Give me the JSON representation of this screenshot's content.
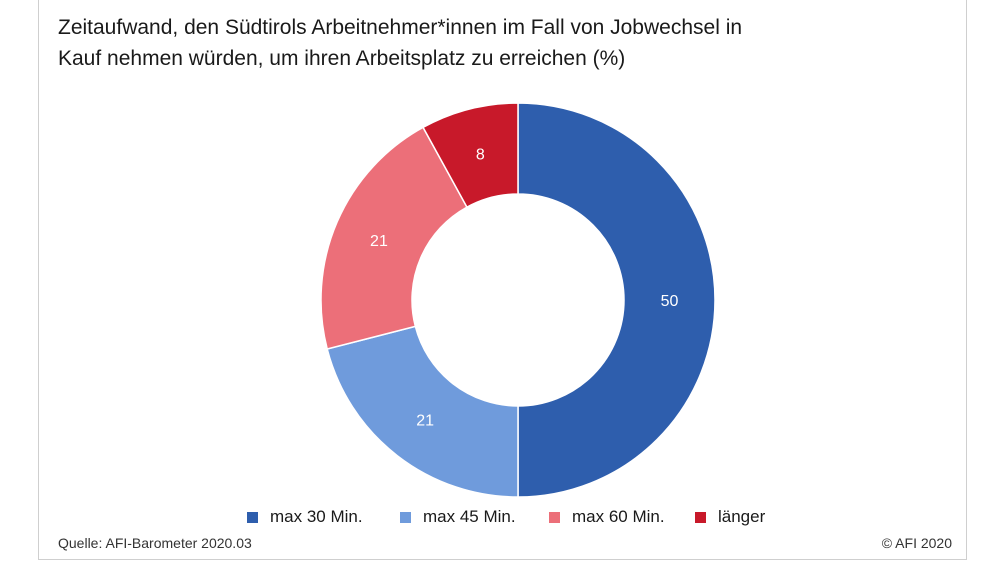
{
  "chart_data": {
    "type": "pie",
    "title_lines": [
      "Zeitaufwand, den Südtirols Arbeitnehmer*innen im Fall von Jobwechsel in",
      "Kauf nehmen würden, um ihren Arbeitsplatz zu erreichen (%)"
    ],
    "categories": [
      "max 30 Min.",
      "max 45 Min.",
      "max 60 Min.",
      "länger"
    ],
    "values": [
      50,
      21,
      21,
      8
    ],
    "colors": [
      "#2e5ead",
      "#6f9bdc",
      "#ec6f79",
      "#c8192a"
    ],
    "data_labels": [
      "50",
      "21",
      "21",
      "8"
    ],
    "donut": true,
    "legend_position": "bottom"
  },
  "footer": {
    "source": "Quelle: AFI-Barometer 2020.03",
    "copyright": "© AFI 2020"
  }
}
